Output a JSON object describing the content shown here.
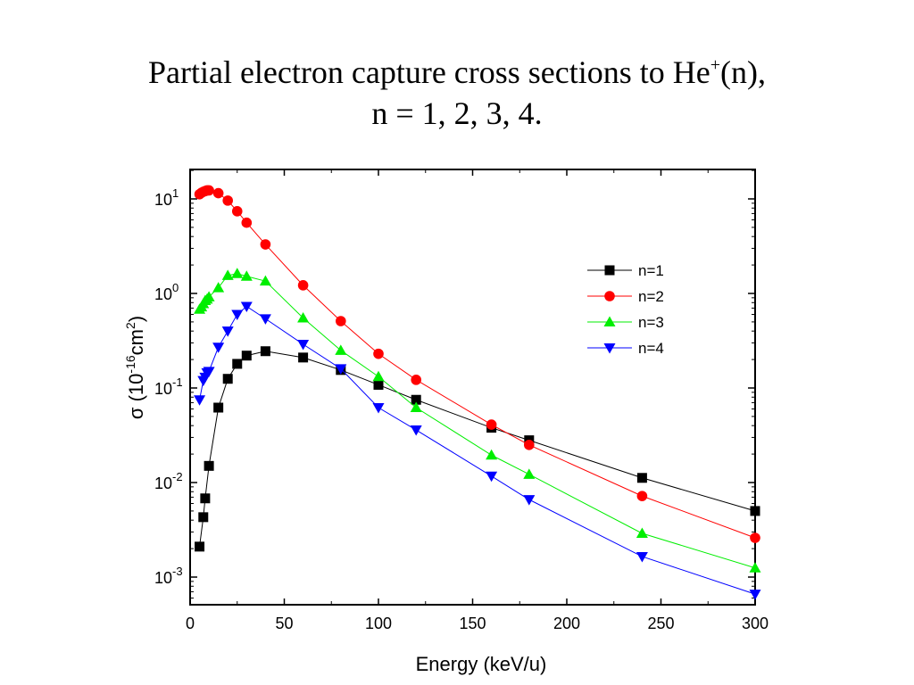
{
  "slide": {
    "title_line1_pre": "Partial electron capture cross sections to He",
    "title_line1_sup": "+",
    "title_line1_post": "(n),",
    "title_line2": "n = 1, 2, 3, 4."
  },
  "chart_data": {
    "type": "scatter",
    "connected": true,
    "title": "",
    "xlabel": "Energy (keV/u)",
    "ylabel_prefix": "σ (10",
    "ylabel_exp": "-16",
    "ylabel_unit": "cm",
    "ylabel_unit_exp": "2",
    "ylabel_suffix": ")",
    "xlim": [
      0,
      300
    ],
    "ylim": [
      0.0005,
      20
    ],
    "yscale": "log",
    "grid": false,
    "legend_position": "top-right",
    "x_ticks": [
      "0",
      "50",
      "100",
      "150",
      "200",
      "250",
      "300"
    ],
    "y_ticks": [
      {
        "base": "10",
        "exp": "-3",
        "value": 0.001
      },
      {
        "base": "10",
        "exp": "-2",
        "value": 0.01
      },
      {
        "base": "10",
        "exp": "-1",
        "value": 0.1
      },
      {
        "base": "10",
        "exp": "0",
        "value": 1
      },
      {
        "base": "10",
        "exp": "1",
        "value": 10
      }
    ],
    "series": [
      {
        "name": "n=1",
        "color": "#000000",
        "marker": "square",
        "points": [
          [
            5,
            0.0021
          ],
          [
            7,
            0.0043
          ],
          [
            8,
            0.0068
          ],
          [
            10,
            0.015
          ],
          [
            15,
            0.062
          ],
          [
            20,
            0.125
          ],
          [
            25,
            0.18
          ],
          [
            30,
            0.22
          ],
          [
            40,
            0.245
          ],
          [
            60,
            0.21
          ],
          [
            80,
            0.155
          ],
          [
            100,
            0.108
          ],
          [
            120,
            0.075
          ],
          [
            160,
            0.038
          ],
          [
            180,
            0.028
          ],
          [
            240,
            0.0112
          ],
          [
            300,
            0.005
          ]
        ]
      },
      {
        "name": "n=2",
        "color": "#ff0000",
        "marker": "circle",
        "points": [
          [
            5,
            11.2
          ],
          [
            6,
            11.6
          ],
          [
            7,
            11.9
          ],
          [
            8,
            12.1
          ],
          [
            9,
            12.3
          ],
          [
            10,
            12.3
          ],
          [
            15,
            11.5
          ],
          [
            20,
            9.6
          ],
          [
            25,
            7.4
          ],
          [
            30,
            5.6
          ],
          [
            40,
            3.3
          ],
          [
            60,
            1.22
          ],
          [
            80,
            0.51
          ],
          [
            100,
            0.23
          ],
          [
            120,
            0.122
          ],
          [
            160,
            0.041
          ],
          [
            180,
            0.025
          ],
          [
            240,
            0.0072
          ],
          [
            300,
            0.0026
          ]
        ]
      },
      {
        "name": "n=3",
        "color": "#00ee00",
        "marker": "triangle-up",
        "points": [
          [
            5,
            0.68
          ],
          [
            6,
            0.72
          ],
          [
            7,
            0.78
          ],
          [
            8,
            0.84
          ],
          [
            9,
            0.87
          ],
          [
            10,
            0.92
          ],
          [
            15,
            1.15
          ],
          [
            20,
            1.55
          ],
          [
            25,
            1.62
          ],
          [
            30,
            1.52
          ],
          [
            40,
            1.35
          ],
          [
            60,
            0.55
          ],
          [
            80,
            0.25
          ],
          [
            100,
            0.132
          ],
          [
            120,
            0.062
          ],
          [
            160,
            0.0195
          ],
          [
            180,
            0.0122
          ],
          [
            240,
            0.0029
          ],
          [
            300,
            0.00125
          ]
        ]
      },
      {
        "name": "n=4",
        "color": "#0000ff",
        "marker": "triangle-down",
        "points": [
          [
            5,
            0.075
          ],
          [
            7,
            0.12
          ],
          [
            8,
            0.13
          ],
          [
            9,
            0.145
          ],
          [
            10,
            0.15
          ],
          [
            15,
            0.27
          ],
          [
            20,
            0.4
          ],
          [
            25,
            0.6
          ],
          [
            30,
            0.73
          ],
          [
            40,
            0.54
          ],
          [
            60,
            0.29
          ],
          [
            80,
            0.16
          ],
          [
            100,
            0.062
          ],
          [
            120,
            0.036
          ],
          [
            160,
            0.0117
          ],
          [
            180,
            0.0066
          ],
          [
            240,
            0.00165
          ],
          [
            300,
            0.00066
          ]
        ]
      }
    ]
  }
}
